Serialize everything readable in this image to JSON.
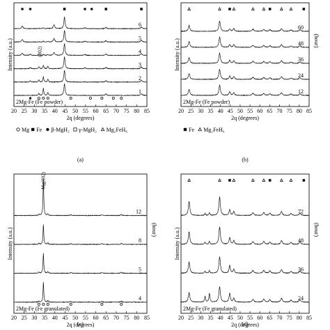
{
  "chart_data": [
    {
      "type": "line",
      "panel_label": "(a)",
      "box_label": "2Mg-Fe (Fe powder)",
      "xlabel": "2q (degrees)",
      "ylabel": "Intensity (a.u.)",
      "right_label": "",
      "xlim": [
        20,
        85
      ],
      "x_ticks": [
        "20",
        "25",
        "30",
        "35",
        "40",
        "45",
        "50",
        "55",
        "60",
        "65",
        "70",
        "75",
        "80",
        "85"
      ],
      "series_labels": [
        "1",
        "2",
        "3",
        "4",
        "5",
        "6"
      ],
      "peaks_x": [
        32.2,
        34.4,
        36.6,
        44.7,
        65.0,
        82.3
      ],
      "annot_002": "(002)",
      "legend": [
        {
          "symbol": "circle-open",
          "label": "Mg"
        },
        {
          "symbol": "square-filled",
          "label": "Fe"
        },
        {
          "symbol": "circle-filled",
          "label": "β-MgH₂"
        },
        {
          "symbol": "square-open",
          "label": "γ-MgH₂"
        },
        {
          "symbol": "triangle-open",
          "label": "Mg₂FeH₆"
        }
      ]
    },
    {
      "type": "line",
      "panel_label": "(b)",
      "box_label": "2Mg-Fe (Fe powder)",
      "xlabel": "2q (degrees)",
      "ylabel": "Intensity (a.u.)",
      "right_label": "(hour)",
      "xlim": [
        20,
        85
      ],
      "x_ticks": [
        "20",
        "25",
        "30",
        "35",
        "40",
        "45",
        "50",
        "55",
        "60",
        "65",
        "70",
        "75",
        "80",
        "85"
      ],
      "series_labels": [
        "12",
        "24",
        "36",
        "48",
        "60"
      ],
      "peaks_x": [
        24.1,
        39.6,
        44.7,
        46.8,
        56.5,
        62.0,
        65.1,
        71.0,
        75.8,
        80.4
      ],
      "legend": [
        {
          "symbol": "square-filled",
          "label": "Fe"
        },
        {
          "symbol": "triangle-open",
          "label": "Mg₂FeH₆"
        }
      ]
    },
    {
      "type": "line",
      "panel_label": "(c)",
      "box_label": "2Mg-Fe (Fe granulated)",
      "xlabel": "2q (degrees)",
      "ylabel": "Intensity (a.u.)",
      "right_label": "(hour)",
      "xlim": [
        20,
        85
      ],
      "x_ticks": [
        "20",
        "25",
        "30",
        "35",
        "40",
        "45",
        "50",
        "55",
        "60",
        "65",
        "70",
        "75",
        "80",
        "85"
      ],
      "series_labels": [
        "4",
        "5",
        "8",
        "12"
      ],
      "peaks_x": [
        32.2,
        34.4,
        36.6,
        47.8,
        63.0,
        72.5
      ],
      "annot_002": "Mg(002)",
      "legend": [
        {
          "symbol": "circle-open",
          "label": "Mg"
        }
      ]
    },
    {
      "type": "line",
      "panel_label": "(d)",
      "box_label": "2Mg-Fe (Fe granulated)",
      "xlabel": "2q (degrees)",
      "ylabel": "Intensity (a.u.)",
      "right_label": "(hour)",
      "xlim": [
        20,
        85
      ],
      "x_ticks": [
        "20",
        "25",
        "30",
        "35",
        "40",
        "45",
        "50",
        "55",
        "60",
        "65",
        "70",
        "75",
        "80",
        "85"
      ],
      "series_labels": [
        "24",
        "36",
        "48",
        "72"
      ],
      "peaks_x": [
        24.1,
        32.2,
        34.4,
        39.6,
        44.7,
        46.8,
        56.5,
        62.0,
        65.1,
        71.0,
        75.8,
        80.4
      ],
      "legend": [
        {
          "symbol": "circle-open",
          "label": "Mg"
        },
        {
          "symbol": "square-filled",
          "label": "Fe"
        },
        {
          "symbol": "triangle-open",
          "label": "Mg₂FeH₆"
        }
      ]
    }
  ]
}
